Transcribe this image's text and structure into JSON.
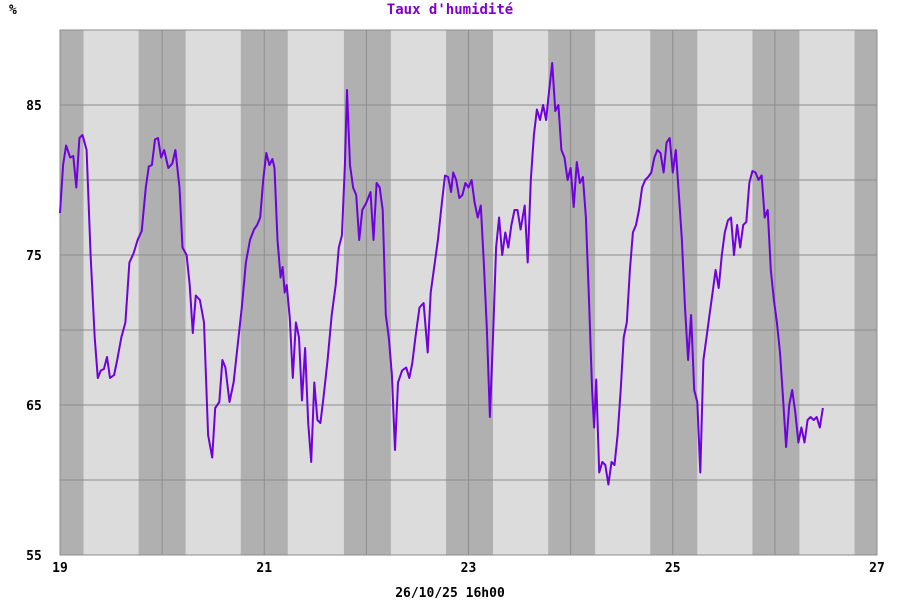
{
  "chart_data": {
    "type": "line",
    "title": "Taux d'humidité",
    "ylabel": "%",
    "footer": "26/10/25 16h00",
    "xlim": [
      19,
      27
    ],
    "ylim": [
      55,
      90
    ],
    "x_ticks": [
      19,
      21,
      23,
      25,
      27
    ],
    "y_ticks": [
      55,
      65,
      75,
      85
    ],
    "grid": true,
    "night_shading": true,
    "colors": {
      "line": "#7000dd",
      "title": "#8000cc",
      "day_band": "#dcdcdc",
      "night_band": "#b0b0b0",
      "grid": "#8c8c8c"
    },
    "night_bands": [
      [
        19.0,
        19.23
      ],
      [
        19.77,
        20.23
      ],
      [
        20.77,
        21.23
      ],
      [
        21.78,
        22.24
      ],
      [
        22.78,
        23.24
      ],
      [
        23.78,
        24.24
      ],
      [
        24.78,
        25.24
      ],
      [
        25.78,
        26.24
      ],
      [
        26.78,
        27.0
      ]
    ],
    "series": [
      {
        "points": [
          [
            19.0,
            77.8
          ],
          [
            19.03,
            81.0
          ],
          [
            19.06,
            82.3
          ],
          [
            19.1,
            81.5
          ],
          [
            19.13,
            81.6
          ],
          [
            19.16,
            79.5
          ],
          [
            19.19,
            82.8
          ],
          [
            19.22,
            83.0
          ],
          [
            19.26,
            82.0
          ],
          [
            19.3,
            75.0
          ],
          [
            19.34,
            69.5
          ],
          [
            19.37,
            66.8
          ],
          [
            19.4,
            67.3
          ],
          [
            19.43,
            67.4
          ],
          [
            19.46,
            68.2
          ],
          [
            19.49,
            66.8
          ],
          [
            19.53,
            67.0
          ],
          [
            19.56,
            68.0
          ],
          [
            19.6,
            69.5
          ],
          [
            19.64,
            70.5
          ],
          [
            19.68,
            74.5
          ],
          [
            19.72,
            75.1
          ],
          [
            19.76,
            76.0
          ],
          [
            19.8,
            76.6
          ],
          [
            19.84,
            79.5
          ],
          [
            19.87,
            80.9
          ],
          [
            19.9,
            81.0
          ],
          [
            19.93,
            82.7
          ],
          [
            19.96,
            82.8
          ],
          [
            19.99,
            81.5
          ],
          [
            20.02,
            82.0
          ],
          [
            20.06,
            80.8
          ],
          [
            20.1,
            81.1
          ],
          [
            20.13,
            82.0
          ],
          [
            20.17,
            79.5
          ],
          [
            20.2,
            75.5
          ],
          [
            20.24,
            75.0
          ],
          [
            20.27,
            73.0
          ],
          [
            20.3,
            69.8
          ],
          [
            20.33,
            72.3
          ],
          [
            20.37,
            72.0
          ],
          [
            20.41,
            70.5
          ],
          [
            20.45,
            63.0
          ],
          [
            20.49,
            61.5
          ],
          [
            20.52,
            64.8
          ],
          [
            20.56,
            65.2
          ],
          [
            20.59,
            68.0
          ],
          [
            20.62,
            67.5
          ],
          [
            20.66,
            65.2
          ],
          [
            20.7,
            66.5
          ],
          [
            20.74,
            69.0
          ],
          [
            20.78,
            71.5
          ],
          [
            20.82,
            74.5
          ],
          [
            20.86,
            76.0
          ],
          [
            20.9,
            76.7
          ],
          [
            20.93,
            77.0
          ],
          [
            20.96,
            77.5
          ],
          [
            20.99,
            80.0
          ],
          [
            21.02,
            81.8
          ],
          [
            21.05,
            81.0
          ],
          [
            21.08,
            81.4
          ],
          [
            21.1,
            80.8
          ],
          [
            21.13,
            76.0
          ],
          [
            21.16,
            73.5
          ],
          [
            21.18,
            74.2
          ],
          [
            21.2,
            72.5
          ],
          [
            21.22,
            73.0
          ],
          [
            21.25,
            70.8
          ],
          [
            21.28,
            66.8
          ],
          [
            21.31,
            70.5
          ],
          [
            21.34,
            69.5
          ],
          [
            21.37,
            65.3
          ],
          [
            21.4,
            68.8
          ],
          [
            21.43,
            63.8
          ],
          [
            21.46,
            61.2
          ],
          [
            21.49,
            66.5
          ],
          [
            21.52,
            64.0
          ],
          [
            21.55,
            63.8
          ],
          [
            21.58,
            65.5
          ],
          [
            21.62,
            68.0
          ],
          [
            21.66,
            71.0
          ],
          [
            21.7,
            73.0
          ],
          [
            21.73,
            75.5
          ],
          [
            21.76,
            76.3
          ],
          [
            21.79,
            81.0
          ],
          [
            21.81,
            86.0
          ],
          [
            21.84,
            81.0
          ],
          [
            21.87,
            79.5
          ],
          [
            21.9,
            79.0
          ],
          [
            21.93,
            76.0
          ],
          [
            21.96,
            78.0
          ],
          [
            22.0,
            78.5
          ],
          [
            22.04,
            79.2
          ],
          [
            22.07,
            76.0
          ],
          [
            22.1,
            79.8
          ],
          [
            22.13,
            79.5
          ],
          [
            22.16,
            78.0
          ],
          [
            22.19,
            71.0
          ],
          [
            22.22,
            69.5
          ],
          [
            22.25,
            67.0
          ],
          [
            22.28,
            62.0
          ],
          [
            22.31,
            66.5
          ],
          [
            22.35,
            67.3
          ],
          [
            22.39,
            67.5
          ],
          [
            22.42,
            66.8
          ],
          [
            22.45,
            67.8
          ],
          [
            22.48,
            69.5
          ],
          [
            22.52,
            71.5
          ],
          [
            22.56,
            71.8
          ],
          [
            22.6,
            68.5
          ],
          [
            22.63,
            72.5
          ],
          [
            22.66,
            74.0
          ],
          [
            22.7,
            76.0
          ],
          [
            22.74,
            78.5
          ],
          [
            22.77,
            80.3
          ],
          [
            22.8,
            80.2
          ],
          [
            22.83,
            79.2
          ],
          [
            22.85,
            80.5
          ],
          [
            22.88,
            80.0
          ],
          [
            22.91,
            78.8
          ],
          [
            22.94,
            79.0
          ],
          [
            22.97,
            79.8
          ],
          [
            23.0,
            79.5
          ],
          [
            23.03,
            80.0
          ],
          [
            23.06,
            78.5
          ],
          [
            23.09,
            77.5
          ],
          [
            23.12,
            78.3
          ],
          [
            23.15,
            74.5
          ],
          [
            23.18,
            70.0
          ],
          [
            23.21,
            64.2
          ],
          [
            23.24,
            69.5
          ],
          [
            23.27,
            75.5
          ],
          [
            23.3,
            77.5
          ],
          [
            23.33,
            75.0
          ],
          [
            23.36,
            76.5
          ],
          [
            23.39,
            75.5
          ],
          [
            23.42,
            77.0
          ],
          [
            23.45,
            78.0
          ],
          [
            23.48,
            78.0
          ],
          [
            23.51,
            76.7
          ],
          [
            23.55,
            78.3
          ],
          [
            23.58,
            74.5
          ],
          [
            23.61,
            80.0
          ],
          [
            23.64,
            83.0
          ],
          [
            23.67,
            84.7
          ],
          [
            23.7,
            84.0
          ],
          [
            23.73,
            85.0
          ],
          [
            23.76,
            84.0
          ],
          [
            23.79,
            86.0
          ],
          [
            23.82,
            87.8
          ],
          [
            23.85,
            84.6
          ],
          [
            23.88,
            85.0
          ],
          [
            23.91,
            82.0
          ],
          [
            23.94,
            81.5
          ],
          [
            23.97,
            80.0
          ],
          [
            24.0,
            80.8
          ],
          [
            24.03,
            78.2
          ],
          [
            24.06,
            81.2
          ],
          [
            24.09,
            79.8
          ],
          [
            24.12,
            80.2
          ],
          [
            24.15,
            77.5
          ],
          [
            24.18,
            72.0
          ],
          [
            24.21,
            66.0
          ],
          [
            24.23,
            63.5
          ],
          [
            24.25,
            66.7
          ],
          [
            24.28,
            60.5
          ],
          [
            24.31,
            61.2
          ],
          [
            24.34,
            61.0
          ],
          [
            24.37,
            59.7
          ],
          [
            24.4,
            61.2
          ],
          [
            24.43,
            61.0
          ],
          [
            24.46,
            63.0
          ],
          [
            24.49,
            66.0
          ],
          [
            24.52,
            69.5
          ],
          [
            24.55,
            70.5
          ],
          [
            24.58,
            74.0
          ],
          [
            24.61,
            76.5
          ],
          [
            24.64,
            77.0
          ],
          [
            24.67,
            78.0
          ],
          [
            24.7,
            79.5
          ],
          [
            24.73,
            80.0
          ],
          [
            24.76,
            80.2
          ],
          [
            24.79,
            80.5
          ],
          [
            24.82,
            81.5
          ],
          [
            24.85,
            82.0
          ],
          [
            24.88,
            81.8
          ],
          [
            24.91,
            80.5
          ],
          [
            24.94,
            82.5
          ],
          [
            24.97,
            82.8
          ],
          [
            25.0,
            80.5
          ],
          [
            25.03,
            82.0
          ],
          [
            25.06,
            79.0
          ],
          [
            25.09,
            76.0
          ],
          [
            25.12,
            71.5
          ],
          [
            25.15,
            68.0
          ],
          [
            25.18,
            71.0
          ],
          [
            25.21,
            66.0
          ],
          [
            25.24,
            65.2
          ],
          [
            25.27,
            60.5
          ],
          [
            25.3,
            68.0
          ],
          [
            25.33,
            69.5
          ],
          [
            25.36,
            71.0
          ],
          [
            25.39,
            72.5
          ],
          [
            25.42,
            74.0
          ],
          [
            25.45,
            72.8
          ],
          [
            25.48,
            75.0
          ],
          [
            25.51,
            76.5
          ],
          [
            25.54,
            77.3
          ],
          [
            25.57,
            77.5
          ],
          [
            25.6,
            75.0
          ],
          [
            25.63,
            77.0
          ],
          [
            25.66,
            75.5
          ],
          [
            25.69,
            77.0
          ],
          [
            25.72,
            77.2
          ],
          [
            25.75,
            79.8
          ],
          [
            25.78,
            80.6
          ],
          [
            25.81,
            80.5
          ],
          [
            25.84,
            80.0
          ],
          [
            25.87,
            80.3
          ],
          [
            25.9,
            77.5
          ],
          [
            25.93,
            78.0
          ],
          [
            25.96,
            74.0
          ],
          [
            25.99,
            72.0
          ],
          [
            26.02,
            70.5
          ],
          [
            26.05,
            68.5
          ],
          [
            26.08,
            65.5
          ],
          [
            26.11,
            62.2
          ],
          [
            26.14,
            65.0
          ],
          [
            26.17,
            66.0
          ],
          [
            26.2,
            64.5
          ],
          [
            26.23,
            62.5
          ],
          [
            26.26,
            63.5
          ],
          [
            26.29,
            62.5
          ],
          [
            26.32,
            64.0
          ],
          [
            26.35,
            64.2
          ],
          [
            26.38,
            64.0
          ],
          [
            26.41,
            64.2
          ],
          [
            26.44,
            63.5
          ],
          [
            26.47,
            64.8
          ]
        ]
      }
    ]
  }
}
